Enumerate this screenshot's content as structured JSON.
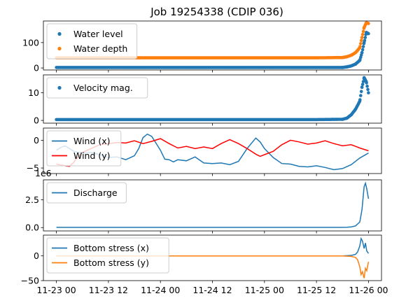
{
  "figure": {
    "title": "Job 19254338 (CDIP 036)"
  },
  "chart_data": [
    {
      "type": "scatter",
      "ylim": [
        -8,
        185
      ],
      "yticks": [
        0,
        100
      ],
      "grid": false,
      "legend_position": "upper-left",
      "series": [
        {
          "name": "Water level",
          "color": "#1f77b4",
          "x": [
            0,
            12,
            24,
            36,
            48,
            60,
            66,
            67,
            68,
            69,
            70,
            70.5,
            71,
            71.5,
            72
          ],
          "y": [
            2,
            2,
            2,
            2,
            2,
            2,
            2,
            4,
            8,
            15,
            30,
            60,
            100,
            140,
            135
          ]
        },
        {
          "name": "Water depth",
          "color": "#ff7f0e",
          "x": [
            0,
            12,
            24,
            36,
            48,
            60,
            66,
            67,
            68,
            69,
            70,
            70.5,
            71,
            71.5,
            72
          ],
          "y": [
            40,
            40,
            40,
            40,
            40,
            40,
            41,
            44,
            50,
            60,
            80,
            120,
            160,
            178,
            175
          ]
        }
      ]
    },
    {
      "type": "scatter",
      "ylim": [
        -1,
        16.5
      ],
      "yticks": [
        0,
        10
      ],
      "grid": false,
      "legend_position": "upper-left",
      "series": [
        {
          "name": "Velocity mag.",
          "color": "#1f77b4",
          "x": [
            0,
            12,
            24,
            36,
            48,
            60,
            66,
            67,
            68,
            69,
            70,
            70.5,
            71,
            71.5,
            72
          ],
          "y": [
            0.3,
            0.3,
            0.3,
            0.3,
            0.3,
            0.3,
            0.4,
            0.8,
            2,
            4,
            7,
            12,
            15.5,
            14,
            10
          ]
        }
      ]
    },
    {
      "type": "line",
      "ylim": [
        -6,
        2.2
      ],
      "yticks": [
        0,
        -5
      ],
      "grid": false,
      "legend_position": "upper-left",
      "series": [
        {
          "name": "Wind (x)",
          "color": "#1f77b4",
          "x": [
            0,
            1,
            2,
            3,
            4,
            6,
            8,
            10,
            12,
            14,
            16,
            18,
            19,
            20,
            21,
            22,
            24,
            25,
            26,
            27,
            28,
            30,
            32,
            34,
            36,
            38,
            40,
            42,
            44,
            46,
            47,
            48,
            50,
            52,
            54,
            56,
            58,
            60,
            62,
            64,
            66,
            68,
            70,
            72
          ],
          "y": [
            -1.8,
            -1.3,
            -1.0,
            -1.5,
            -2.0,
            -2.3,
            -2.2,
            -2.6,
            -3.1,
            -3.0,
            -3.5,
            -2.8,
            -1.5,
            0.5,
            1.1,
            0.7,
            -1.8,
            -3.4,
            -3.5,
            -3.9,
            -3.5,
            -3.7,
            -3.0,
            -4.1,
            -4.2,
            -4.1,
            -4.4,
            -3.8,
            -1.5,
            0.4,
            -0.3,
            -1.5,
            -3.1,
            -4.2,
            -4.3,
            -4.7,
            -4.8,
            -4.6,
            -4.9,
            -5.3,
            -5.1,
            -4.4,
            -3.2,
            -2.3
          ]
        },
        {
          "name": "Wind (y)",
          "color": "#ff0000",
          "x": [
            0,
            2,
            3,
            4,
            5,
            6,
            8,
            10,
            12,
            14,
            16,
            18,
            20,
            22,
            24,
            26,
            28,
            30,
            32,
            34,
            36,
            38,
            40,
            42,
            44,
            46,
            47,
            48,
            50,
            52,
            54,
            56,
            58,
            60,
            62,
            64,
            66,
            68,
            70,
            72
          ],
          "y": [
            -4.3,
            -4.6,
            -4.7,
            -4.0,
            -3.0,
            -2.2,
            -1.5,
            -0.8,
            -0.6,
            -0.4,
            -0.5,
            -0.1,
            -0.6,
            -0.2,
            0.3,
            -0.6,
            -1.4,
            -1.1,
            -1.5,
            -1.2,
            -1.5,
            -0.6,
            0.1,
            -0.6,
            -1.5,
            -2.5,
            -2.9,
            -2.6,
            -2.0,
            -0.8,
            0.0,
            -0.3,
            -0.7,
            -0.5,
            -0.1,
            -0.6,
            -1.0,
            -0.8,
            -1.4,
            -1.9
          ]
        }
      ]
    },
    {
      "type": "line",
      "ylim": [
        -0.3,
        4.3
      ],
      "yticks": [
        0,
        2.5
      ],
      "y_tick_labels": [
        "0.0",
        "2.5"
      ],
      "y_scale_label": "1e6",
      "grid": false,
      "legend_position": "upper-left",
      "series": [
        {
          "name": "Discharge",
          "color": "#1f77b4",
          "x": [
            0,
            12,
            24,
            36,
            48,
            60,
            66,
            67,
            68,
            69,
            70,
            70.5,
            71,
            71.3,
            71.6,
            72
          ],
          "y": [
            0.02,
            0.02,
            0.02,
            0.02,
            0.02,
            0.02,
            0.02,
            0.03,
            0.06,
            0.15,
            0.5,
            1.6,
            3.7,
            4.0,
            3.5,
            2.6
          ]
        }
      ]
    },
    {
      "type": "line",
      "ylim": [
        -50,
        42
      ],
      "yticks": [
        0,
        -50
      ],
      "grid": false,
      "legend_position": "upper-left",
      "series": [
        {
          "name": "Bottom stress (x)",
          "color": "#1f77b4",
          "x": [
            0,
            12,
            24,
            36,
            48,
            60,
            66,
            68,
            69,
            69.5,
            70,
            70.3,
            70.6,
            71,
            71.3,
            71.6,
            72
          ],
          "y": [
            0,
            0,
            0,
            0,
            0,
            0,
            0,
            1,
            3,
            8,
            20,
            35,
            30,
            15,
            26,
            10,
            5
          ]
        },
        {
          "name": "Bottom stress (y)",
          "color": "#ff7f0e",
          "x": [
            0,
            12,
            24,
            36,
            48,
            60,
            66,
            68,
            69,
            69.5,
            70,
            70.3,
            70.6,
            71,
            71.3,
            71.6,
            72
          ],
          "y": [
            0,
            0,
            0,
            0,
            0,
            0,
            0,
            -1,
            -3,
            -8,
            -22,
            -38,
            -32,
            -45,
            -25,
            -30,
            -12
          ]
        }
      ]
    }
  ],
  "x_axis": {
    "range": [
      -3,
      75
    ],
    "ticks": [
      0,
      12,
      24,
      36,
      48,
      60,
      72
    ],
    "tick_labels": [
      "11-23 00",
      "11-23 12",
      "11-24 00",
      "11-24 12",
      "11-25 00",
      "11-25 12",
      "11-26 00"
    ]
  }
}
